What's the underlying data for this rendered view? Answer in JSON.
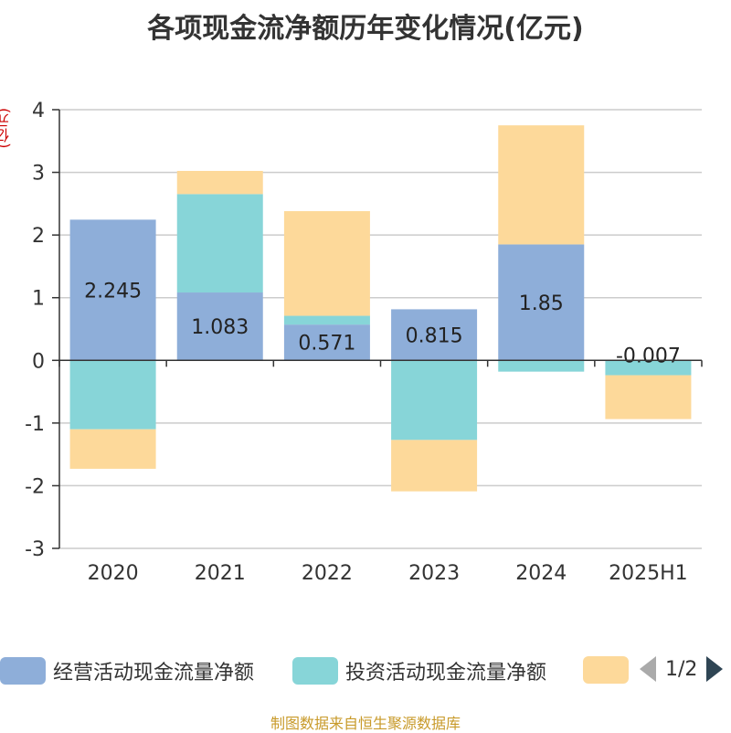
{
  "title": "各项现金流净额历年变化情况(亿元)",
  "unit_label": "(亿元)",
  "footer": "制图数据来自恒生聚源数据库",
  "legend": {
    "items": [
      {
        "label": "经营活动现金流量净额",
        "color": "#8eaed9"
      },
      {
        "label": "投资活动现金流量净额",
        "color": "#87d5d8"
      },
      {
        "label": "",
        "color": "#fdd99a"
      }
    ],
    "pager": "1/2"
  },
  "chart_data": {
    "type": "bar",
    "stacked": true,
    "categories": [
      "2020",
      "2021",
      "2022",
      "2023",
      "2024",
      "2025H1"
    ],
    "ylim": [
      -3,
      4
    ],
    "yticks": [
      4,
      3,
      2,
      1,
      0,
      -1,
      -2,
      -3
    ],
    "grid": true,
    "series": [
      {
        "name": "经营活动现金流量净额",
        "color": "#8eaed9",
        "values": [
          2.245,
          1.083,
          0.571,
          0.815,
          1.85,
          -0.007
        ],
        "labels": [
          "2.245",
          "1.083",
          "0.571",
          "0.815",
          "1.85",
          "-0.007"
        ]
      },
      {
        "name": "投资活动现金流量净额",
        "color": "#87d5d8",
        "values": [
          -1.1,
          1.57,
          0.14,
          -1.27,
          -0.18,
          -0.23
        ]
      },
      {
        "color": "#fdd99a",
        "values": [
          -0.63,
          0.37,
          1.67,
          -0.82,
          1.9,
          -0.7
        ]
      }
    ]
  }
}
